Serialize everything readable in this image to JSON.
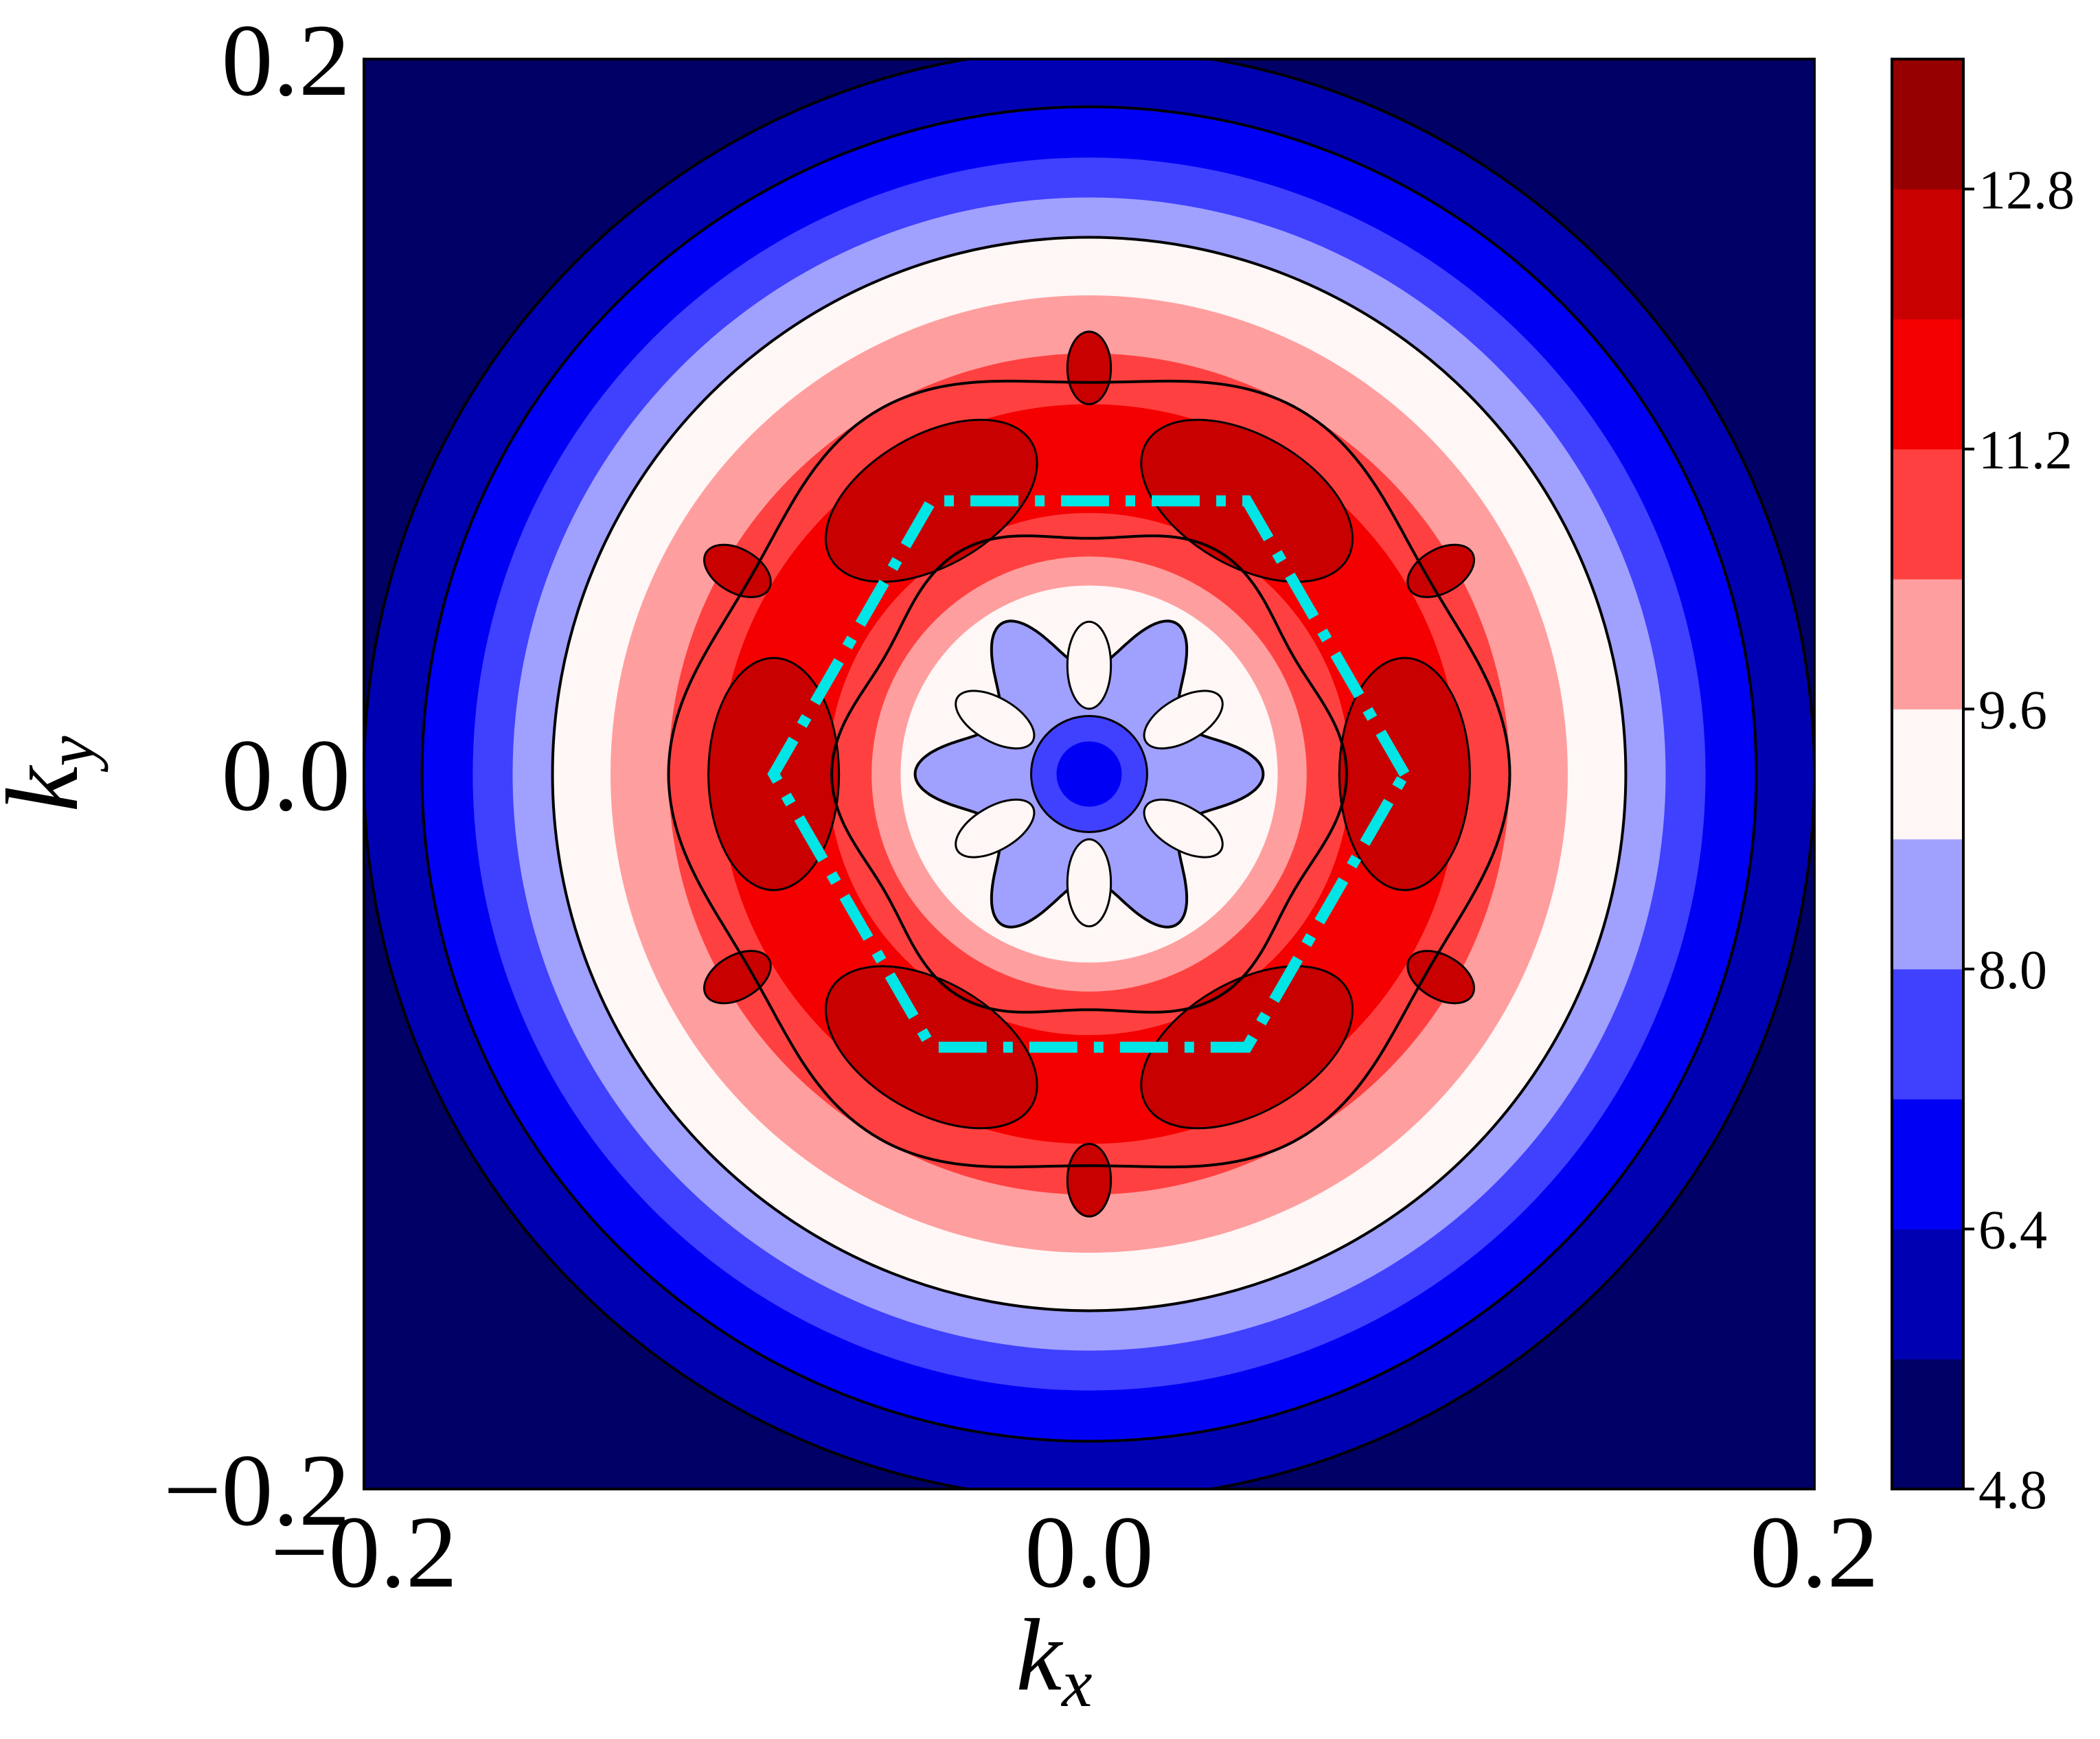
{
  "chart_data": {
    "type": "heatmap",
    "xlabel": "k",
    "xlabel_sub": "x",
    "ylabel": "k",
    "ylabel_sub": "y",
    "xlim": [
      -0.2,
      0.2
    ],
    "ylim": [
      -0.2,
      0.2
    ],
    "x_ticks": [
      {
        "value": -0.2,
        "label": "−0.2"
      },
      {
        "value": 0.0,
        "label": "0.0"
      },
      {
        "value": 0.2,
        "label": "0.2"
      }
    ],
    "y_ticks": [
      {
        "value": -0.2,
        "label": "−0.2"
      },
      {
        "value": 0.0,
        "label": "0.0"
      },
      {
        "value": 0.2,
        "label": "0.2"
      }
    ],
    "colorbar": {
      "min": 4.8,
      "max": 13.6,
      "levels": [
        4.8,
        5.6,
        6.4,
        7.2,
        8.0,
        8.8,
        9.6,
        10.4,
        11.2,
        12.0,
        12.8,
        13.6
      ],
      "colors": [
        "#000066",
        "#0000b3",
        "#0000f5",
        "#4040ff",
        "#a0a0ff",
        "#fff6f6",
        "#ff9e9e",
        "#ff4040",
        "#f50000",
        "#c80000",
        "#960000"
      ],
      "tick_labels": [
        {
          "value": 4.8,
          "label": "4.8"
        },
        {
          "value": 6.4,
          "label": "6.4"
        },
        {
          "value": 8.0,
          "label": "8.0"
        },
        {
          "value": 9.6,
          "label": "9.6"
        },
        {
          "value": 11.2,
          "label": "11.2"
        },
        {
          "value": 12.8,
          "label": "12.8"
        }
      ]
    },
    "radial_bands": [
      {
        "r_outer": 0.29,
        "level_index": 0
      },
      {
        "r_outer": 0.2,
        "level_index": 1
      },
      {
        "r_outer": 0.184,
        "level_index": 2
      },
      {
        "r_outer": 0.17,
        "level_index": 3
      },
      {
        "r_outer": 0.159,
        "level_index": 4
      },
      {
        "r_outer": 0.148,
        "level_index": 5
      },
      {
        "r_outer": 0.132,
        "level_index": 6
      },
      {
        "r_outer": 0.116,
        "level_index": 7
      },
      {
        "r_outer": 0.102,
        "level_index": 8
      },
      {
        "r_outer": 0.072,
        "level_index": 7
      },
      {
        "r_outer": 0.06,
        "level_index": 6
      },
      {
        "r_outer": 0.052,
        "level_index": 5
      },
      {
        "r_outer": 0.028,
        "level_index": 4
      },
      {
        "r_outer": 0.016,
        "level_index": 3
      },
      {
        "r_outer": 0.009,
        "level_index": 2
      }
    ],
    "contour_circles": [
      0.148,
      0.184,
      0.2
    ],
    "hexagon": {
      "radius": 0.087,
      "color": "#00e5e5",
      "style": "dash-dot"
    }
  },
  "colors": {
    "contour": "#000000",
    "frame": "#000000",
    "hexagon": "#00e5e5"
  }
}
